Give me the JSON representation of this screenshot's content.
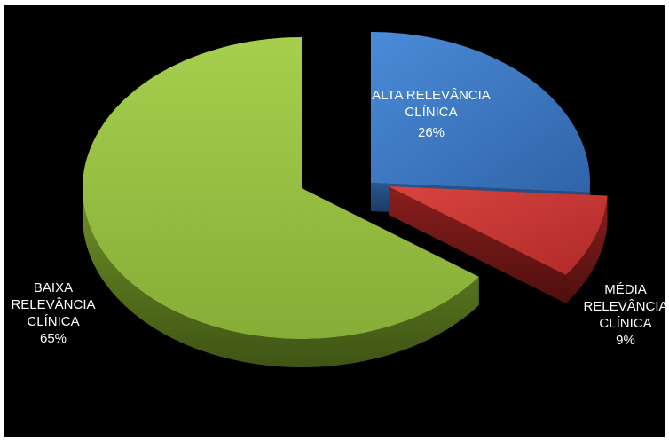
{
  "chart_data": {
    "type": "pie",
    "style": "3d",
    "background": "#000000",
    "title": "",
    "legend": "none",
    "slices": [
      {
        "label_lines": [
          "ALTA RELEVÂNCIA",
          "CLÍNICA"
        ],
        "pct_text": "26%",
        "value": 26,
        "color": "#4a86d0",
        "exploded": true
      },
      {
        "label_lines": [
          "MÉDIA",
          "RELEVÂNCIA",
          "CLÍNICA"
        ],
        "pct_text": "9%",
        "value": 9,
        "color": "#cc3a36",
        "exploded": true
      },
      {
        "label_lines": [
          "BAIXA",
          "RELEVÂNCIA",
          "CLÍNICA"
        ],
        "pct_text": "65%",
        "value": 65,
        "color": "#9bc447",
        "exploded": false
      }
    ]
  }
}
